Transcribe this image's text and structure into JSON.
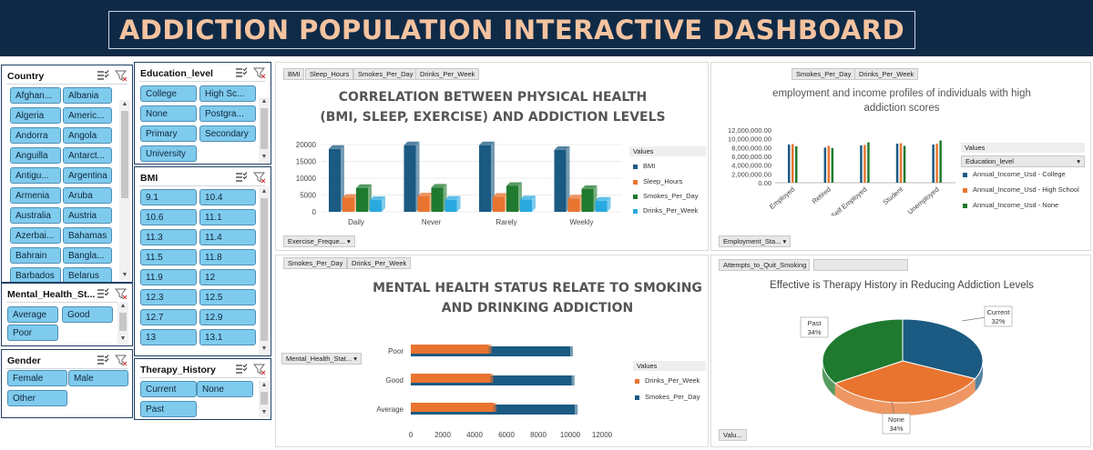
{
  "title": "ADDICTION POPULATION INTERACTIVE DASHBOARD",
  "slicers": {
    "country": {
      "label": "Country",
      "items": [
        "Afghan...",
        "Albania",
        "Algeria",
        "Americ...",
        "Andorra",
        "Angola",
        "Anguilla",
        "Antarct...",
        "Antigu...",
        "Argentina",
        "Armenia",
        "Aruba",
        "Australia",
        "Austria",
        "Azerbai...",
        "Bahamas",
        "Bahrain",
        "Bangla...",
        "Barbados",
        "Belarus"
      ]
    },
    "education": {
      "label": "Education_level",
      "items": [
        "College",
        "High Sc...",
        "None",
        "Postgra...",
        "Primary",
        "Secondary",
        "University"
      ]
    },
    "bmi": {
      "label": "BMI",
      "items": [
        "9.1",
        "10.4",
        "10.6",
        "11.1",
        "11.3",
        "11.4",
        "11.5",
        "11.8",
        "11.9",
        "12",
        "12.3",
        "12.5",
        "12.7",
        "12.9",
        "13",
        "13.1"
      ]
    },
    "mental": {
      "label": "Mental_Health_St...",
      "items": [
        "Average",
        "Good",
        "Poor"
      ]
    },
    "gender": {
      "label": "Gender",
      "items": [
        "Female",
        "Male",
        "Other"
      ]
    },
    "therapy": {
      "label": "Therapy_History",
      "items": [
        "Current",
        "None",
        "Past"
      ]
    }
  },
  "panel1": {
    "fields": [
      "BMI",
      "Sleep_Hours",
      "Smokes_Per_Day",
      "Drinks_Per_Week"
    ],
    "axis_field": "Exercise_Freque...",
    "legend_title": "Values",
    "title_line1": "CORRELATION BETWEEN PHYSICAL HEALTH",
    "title_line2": "(BMI, SLEEP, EXERCISE) AND ADDICTION LEVELS"
  },
  "panel2": {
    "fields": [
      "Smokes_Per_Day",
      "Drinks_Per_Week"
    ],
    "axis_field": "Employment_Sta...",
    "legend_title": "Values",
    "legend_filter": "Education_level",
    "title_line1": "employment and income profiles of individuals with high",
    "title_line2": "addiction scores"
  },
  "panel3": {
    "fields": [
      "Smokes_Per_Day",
      "Drinks_Per_Week"
    ],
    "axis_field": "Mental_Health_Stat...",
    "legend_title": "Values",
    "title_line1": "MENTAL HEALTH STATUS RELATE TO SMOKING",
    "title_line2": "AND DRINKING ADDICTION"
  },
  "panel4": {
    "fields": [
      "Attempts_to_Quit_Smoking",
      ""
    ],
    "values_button": "Valu...",
    "title": "Effective is Therapy History in Reducing Addiction Levels"
  },
  "colors": {
    "dark": "#1b5a82",
    "orange": "#e8742f",
    "green": "#1f7a2f",
    "light": "#29a9e0",
    "navy": "#0f2a47"
  },
  "chart_data": [
    {
      "type": "bar",
      "categories": [
        "Daily",
        "Never",
        "Rarely",
        "Weekly"
      ],
      "series": [
        {
          "name": "BMI",
          "values": [
            18700,
            19800,
            19800,
            18400
          ]
        },
        {
          "name": "Sleep_Hours",
          "values": [
            4200,
            4600,
            4500,
            4000
          ]
        },
        {
          "name": "Smokes_Per_Day",
          "values": [
            7100,
            7200,
            7700,
            6800
          ]
        },
        {
          "name": "Drinks_Per_Week",
          "values": [
            3500,
            3600,
            3700,
            3300
          ]
        }
      ],
      "yticks": [
        "20000",
        "15000",
        "10000",
        "5000",
        "0"
      ],
      "ylim": [
        0,
        20000
      ]
    },
    {
      "type": "bar",
      "categories": [
        "Employed",
        "Retired",
        "Self Employed",
        "Student",
        "Unemployed"
      ],
      "series": [
        {
          "name": "Annual_Income_Usd - College",
          "values": [
            8700000,
            8000000,
            8500000,
            8900000,
            8700000
          ]
        },
        {
          "name": "Annual_Income_Usd - High School",
          "values": [
            8800000,
            8400000,
            8600000,
            9000000,
            8900000
          ]
        },
        {
          "name": "Annual_Income_Usd - None",
          "values": [
            8300000,
            7900000,
            9200000,
            8400000,
            9600000
          ]
        }
      ],
      "yticks": [
        "12,000,000.00",
        "10,000,000.00",
        "8,000,000.00",
        "6,000,000.00",
        "4,000,000.00",
        "2,000,000.00",
        "0.00"
      ],
      "ylim": [
        0,
        12000000
      ]
    },
    {
      "type": "bar",
      "categories": [
        "Poor",
        "Good",
        "Average"
      ],
      "series": [
        {
          "name": "Drinks_Per_Week",
          "values": [
            4900,
            5000,
            5200
          ]
        },
        {
          "name": "Smokes_Per_Day",
          "values": [
            10000,
            10100,
            10300
          ]
        }
      ],
      "xticks": [
        "0",
        "2000",
        "4000",
        "6000",
        "8000",
        "10000",
        "12000"
      ],
      "xlim": [
        0,
        12000
      ]
    },
    {
      "type": "pie",
      "categories": [
        "Current",
        "None",
        "Past"
      ],
      "values": [
        32,
        34,
        34
      ],
      "labels": [
        "Current\n32%",
        "None\n34%",
        "Past\n34%"
      ]
    }
  ]
}
